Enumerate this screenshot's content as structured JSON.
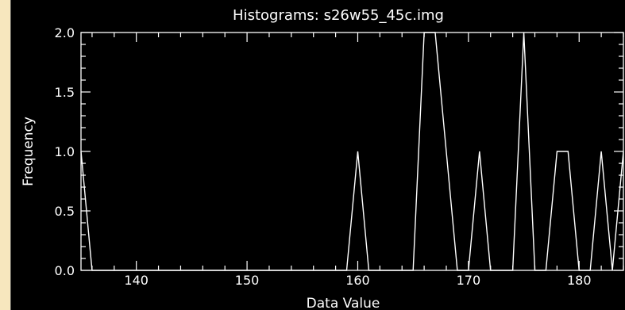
{
  "chart_data": {
    "type": "line",
    "title": "Histograms: s26w55_45c.img",
    "xlabel": "Data Value",
    "ylabel": "Frequency",
    "xlim": [
      135,
      184
    ],
    "ylim": [
      0,
      2.0
    ],
    "x_ticks": [
      {
        "value": 140,
        "label": "140"
      },
      {
        "value": 150,
        "label": "150"
      },
      {
        "value": 160,
        "label": "160"
      },
      {
        "value": 170,
        "label": "170"
      },
      {
        "value": 180,
        "label": "180"
      }
    ],
    "y_ticks": [
      {
        "value": 0.0,
        "label": "0.0"
      },
      {
        "value": 0.5,
        "label": "0.5"
      },
      {
        "value": 1.0,
        "label": "1.0"
      },
      {
        "value": 1.5,
        "label": "1.5"
      },
      {
        "value": 2.0,
        "label": "2.0"
      }
    ],
    "grid": false,
    "colors": {
      "background": "#000000",
      "foreground": "#ffffff",
      "page": "#f7e7be"
    },
    "series": [
      {
        "x": [
          135,
          136,
          159,
          160,
          161,
          165,
          166,
          167,
          169,
          170,
          171,
          172,
          174,
          175,
          176,
          177,
          178,
          179,
          180,
          181,
          182,
          183,
          184
        ],
        "y": [
          1,
          0,
          0,
          1,
          0,
          0,
          2,
          2,
          0,
          0,
          1,
          0,
          0,
          2,
          0,
          0,
          1,
          1,
          0,
          0,
          1,
          0,
          1
        ]
      }
    ]
  }
}
